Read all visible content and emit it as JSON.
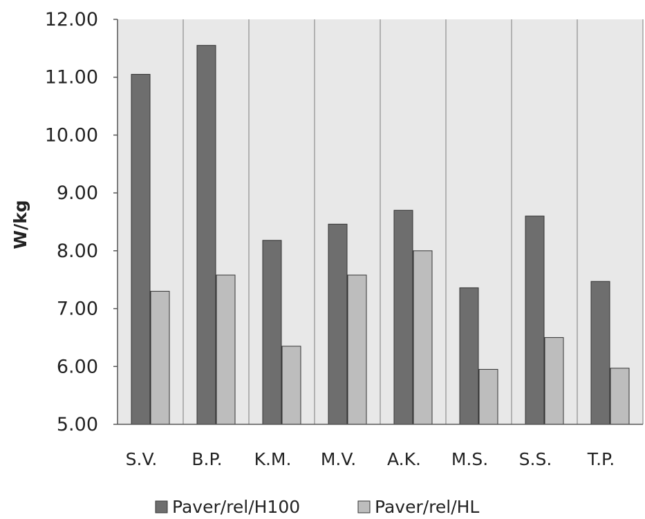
{
  "chart_data": {
    "type": "bar",
    "title": "",
    "xlabel": "",
    "ylabel": "W/kg",
    "ylim": [
      5,
      12
    ],
    "yticks": [
      "5.00",
      "6.00",
      "7.00",
      "8.00",
      "9.00",
      "10.00",
      "11.00",
      "12.00"
    ],
    "categories": [
      "S.V.",
      "B.P.",
      "K.M.",
      "M.V.",
      "A.K.",
      "M.S.",
      "S.S.",
      "T.P."
    ],
    "series": [
      {
        "name": "Paver/rel/H100",
        "color": "#6e6e6e",
        "values": [
          11.05,
          11.55,
          8.18,
          8.46,
          8.7,
          7.36,
          8.6,
          7.47
        ]
      },
      {
        "name": "Paver/rel/HL",
        "color": "#bdbdbd",
        "values": [
          7.3,
          7.58,
          6.35,
          7.58,
          8.0,
          5.95,
          6.5,
          5.97
        ]
      }
    ],
    "grid": "vertical category separators",
    "legend_position": "bottom",
    "plot_background": "#e8e8e8"
  }
}
